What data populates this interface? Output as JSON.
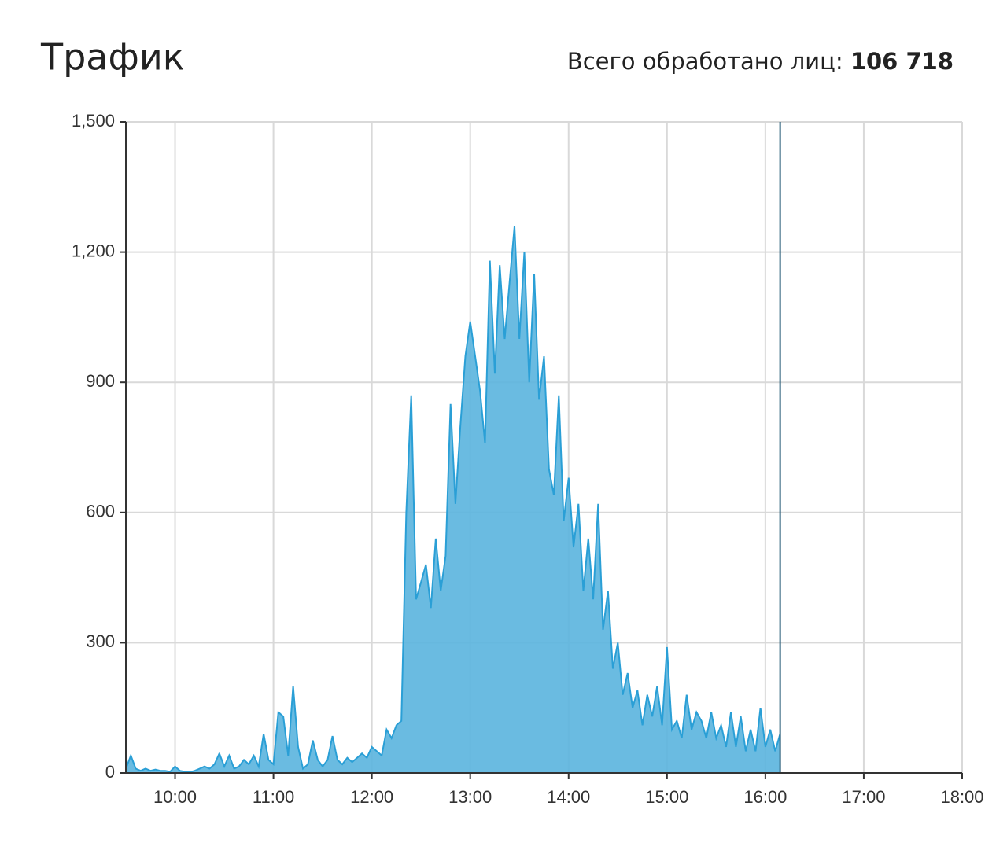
{
  "chart_data": {
    "type": "area",
    "title": "Трафик",
    "total_label": "Всего обработано лиц:",
    "total_value": "106 718",
    "color": "#5ab4de",
    "line_color": "#2a9fd6",
    "grid": true,
    "cursor_x": 16.15,
    "xlim": [
      9.5,
      18
    ],
    "ylim": [
      0,
      1500
    ],
    "xticks": [
      {
        "value": 10,
        "label": "10:00"
      },
      {
        "value": 11,
        "label": "11:00"
      },
      {
        "value": 12,
        "label": "12:00"
      },
      {
        "value": 13,
        "label": "13:00"
      },
      {
        "value": 14,
        "label": "14:00"
      },
      {
        "value": 15,
        "label": "15:00"
      },
      {
        "value": 16,
        "label": "16:00"
      },
      {
        "value": 17,
        "label": "17:00"
      },
      {
        "value": 18,
        "label": "18:00"
      }
    ],
    "yticks": [
      0,
      300,
      600,
      900,
      {
        "value": 1200,
        "label": "1,200"
      },
      {
        "value": 1500,
        "label": "1,500"
      }
    ],
    "x": [
      9.5,
      9.55,
      9.6,
      9.65,
      9.7,
      9.75,
      9.8,
      9.85,
      9.9,
      9.95,
      10,
      10.05,
      10.1,
      10.15,
      10.2,
      10.25,
      10.3,
      10.35,
      10.4,
      10.45,
      10.5,
      10.55,
      10.6,
      10.65,
      10.7,
      10.75,
      10.8,
      10.85,
      10.9,
      10.95,
      11,
      11.05,
      11.1,
      11.15,
      11.2,
      11.25,
      11.3,
      11.35,
      11.4,
      11.45,
      11.5,
      11.55,
      11.6,
      11.65,
      11.7,
      11.75,
      11.8,
      11.85,
      11.9,
      11.95,
      12,
      12.05,
      12.1,
      12.15,
      12.2,
      12.25,
      12.3,
      12.35,
      12.4,
      12.45,
      12.5,
      12.55,
      12.6,
      12.65,
      12.7,
      12.75,
      12.8,
      12.85,
      12.9,
      12.95,
      13,
      13.05,
      13.1,
      13.15,
      13.2,
      13.25,
      13.3,
      13.35,
      13.4,
      13.45,
      13.5,
      13.55,
      13.6,
      13.65,
      13.7,
      13.75,
      13.8,
      13.85,
      13.9,
      13.95,
      14,
      14.05,
      14.1,
      14.15,
      14.2,
      14.25,
      14.3,
      14.35,
      14.4,
      14.45,
      14.5,
      14.55,
      14.6,
      14.65,
      14.7,
      14.75,
      14.8,
      14.85,
      14.9,
      14.95,
      15,
      15.05,
      15.1,
      15.15,
      15.2,
      15.25,
      15.3,
      15.35,
      15.4,
      15.45,
      15.5,
      15.55,
      15.6,
      15.65,
      15.7,
      15.75,
      15.8,
      15.85,
      15.9,
      15.95,
      16,
      16.05,
      16.1,
      16.15
    ],
    "values": [
      10,
      40,
      10,
      5,
      10,
      5,
      8,
      5,
      5,
      3,
      15,
      5,
      3,
      2,
      5,
      10,
      15,
      10,
      20,
      45,
      15,
      40,
      10,
      15,
      30,
      20,
      40,
      15,
      90,
      30,
      20,
      140,
      130,
      40,
      200,
      60,
      10,
      20,
      75,
      30,
      15,
      30,
      85,
      30,
      20,
      35,
      25,
      35,
      45,
      35,
      60,
      50,
      40,
      100,
      80,
      110,
      120,
      600,
      870,
      400,
      440,
      480,
      380,
      540,
      420,
      500,
      850,
      620,
      800,
      960,
      1040,
      960,
      880,
      760,
      1180,
      920,
      1170,
      1000,
      1130,
      1260,
      1000,
      1200,
      900,
      1150,
      860,
      960,
      700,
      640,
      870,
      580,
      680,
      520,
      620,
      420,
      540,
      400,
      620,
      330,
      420,
      240,
      300,
      180,
      230,
      150,
      190,
      110,
      180,
      130,
      200,
      110,
      290,
      100,
      120,
      80,
      180,
      100,
      140,
      120,
      80,
      140,
      80,
      110,
      60,
      140,
      60,
      130,
      50,
      100,
      50,
      150,
      60,
      100,
      50,
      90
    ]
  }
}
